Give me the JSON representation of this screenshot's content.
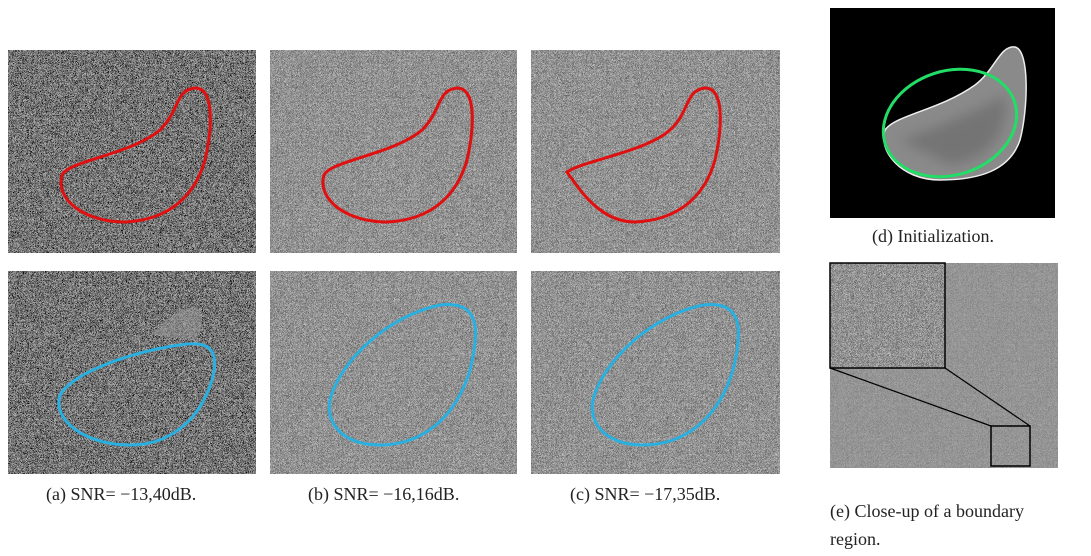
{
  "figure": {
    "captions": {
      "a": "(a) SNR= −13,40dB.",
      "b": "(b) SNR= −16,16dB.",
      "c": "(c) SNR= −17,35dB.",
      "d": "(d) Initialization.",
      "e": "(e) Close-up of a boundary region."
    }
  }
}
